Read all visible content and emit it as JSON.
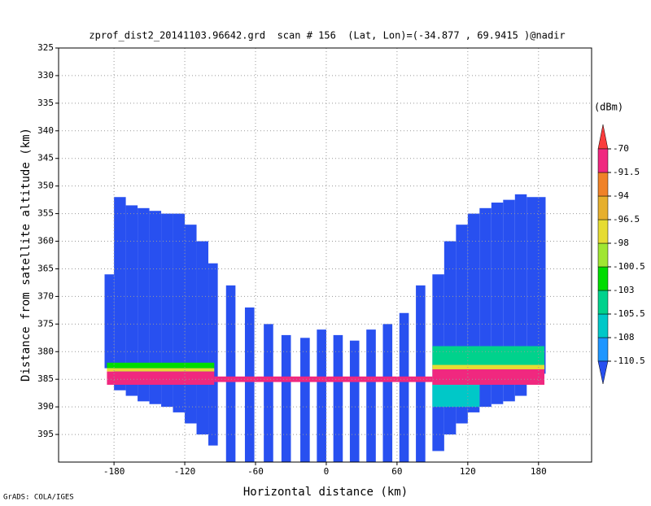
{
  "chart_data": {
    "type": "heatmap",
    "title": "zprof_dist2_20141103.96642.grd  scan # 156  (Lat, Lon)=(-34.877 , 69.9415 )@nadir",
    "x_label": "Horizontal distance (km)",
    "y_label": "Distance from satellite altitude (km)",
    "colorbar_unit": "(dBm)",
    "footer": "GrADS: COLA/IGES",
    "xlim": [
      -227,
      225
    ],
    "xticks": [
      -180,
      -120,
      -60,
      0,
      60,
      120,
      180
    ],
    "ylim": [
      325,
      400
    ],
    "yticks": [
      325,
      330,
      335,
      340,
      345,
      350,
      355,
      360,
      365,
      370,
      375,
      380,
      385,
      390,
      395
    ],
    "y_inverted": true,
    "grid": true,
    "levels": [
      -110.5,
      -108,
      -105.5,
      -103,
      -100.5,
      -98,
      -96.5,
      -94,
      -91.5,
      -70
    ],
    "colors": [
      "#2850f0",
      "#1e96ff",
      "#00c8c8",
      "#00d28c",
      "#00dc00",
      "#a0e632",
      "#e6dc32",
      "#e6af2d",
      "#f08228",
      "#f0287f",
      "#fa3c3c"
    ],
    "cells": [
      [
        -188,
        -180,
        366,
        383,
        -112
      ],
      [
        -180,
        -170,
        352,
        387,
        -112
      ],
      [
        -170,
        -160,
        353.5,
        388,
        -112
      ],
      [
        -160,
        -150,
        354,
        389,
        -112
      ],
      [
        -150,
        -140,
        354.5,
        389.5,
        -112
      ],
      [
        -140,
        -130,
        355,
        390,
        -112
      ],
      [
        -130,
        -120,
        355,
        391,
        -112
      ],
      [
        -120,
        -110,
        357,
        393,
        -112
      ],
      [
        -110,
        -100,
        360,
        395,
        -112
      ],
      [
        -100,
        -92,
        364,
        397,
        -112
      ],
      [
        -85,
        -77,
        368,
        400,
        -112
      ],
      [
        -69,
        -61,
        372,
        400,
        -112
      ],
      [
        -53,
        -45,
        375,
        400,
        -112
      ],
      [
        -38,
        -30,
        377,
        400,
        -112
      ],
      [
        -22,
        -14,
        377.5,
        400,
        -112
      ],
      [
        -8,
        0,
        376,
        400,
        -112
      ],
      [
        6,
        14,
        377,
        400,
        -112
      ],
      [
        20,
        28,
        378,
        400,
        -112
      ],
      [
        34,
        42,
        376,
        400,
        -112
      ],
      [
        48,
        56,
        375,
        400,
        -112
      ],
      [
        62,
        70,
        373,
        400,
        -112
      ],
      [
        76,
        84,
        368,
        400,
        -112
      ],
      [
        90,
        100,
        366,
        398,
        -112
      ],
      [
        100,
        110,
        360,
        395,
        -112
      ],
      [
        110,
        120,
        357,
        393,
        -112
      ],
      [
        120,
        130,
        355,
        391,
        -112
      ],
      [
        130,
        140,
        354,
        390,
        -112
      ],
      [
        140,
        150,
        353,
        389.5,
        -112
      ],
      [
        150,
        160,
        352.5,
        389,
        -112
      ],
      [
        160,
        170,
        351.5,
        388,
        -112
      ],
      [
        170,
        186,
        352,
        384,
        -112
      ],
      [
        90,
        185,
        379,
        383,
        -104
      ],
      [
        90,
        130,
        386,
        390,
        -106
      ],
      [
        -186,
        -95,
        382,
        383,
        -102
      ],
      [
        -186,
        -95,
        383,
        383.6,
        -97.5
      ],
      [
        -186,
        -95,
        383.6,
        386,
        -80
      ],
      [
        -95,
        90,
        384.5,
        385.5,
        -80
      ],
      [
        90,
        185,
        382.4,
        383.2,
        -97.5
      ],
      [
        90,
        185,
        383.2,
        386,
        -80
      ]
    ]
  }
}
